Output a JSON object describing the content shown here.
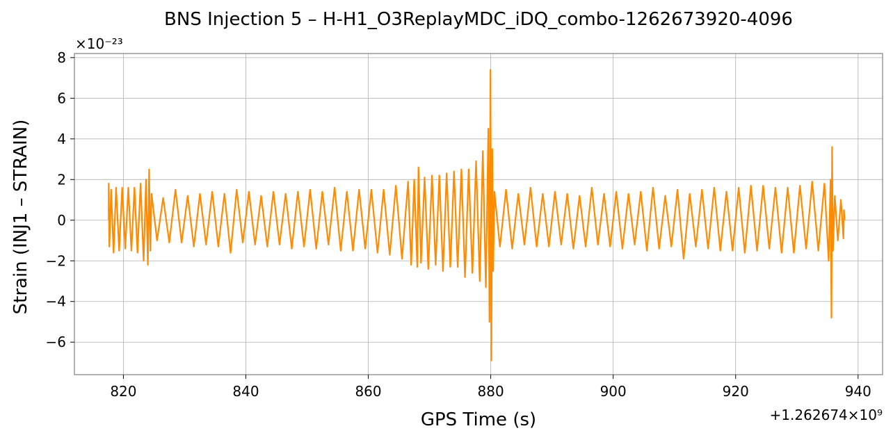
{
  "chart_data": {
    "type": "line",
    "title": "BNS Injection 5 – H-H1_O3ReplayMDC_iDQ_combo-1262673920-4096",
    "xlabel": "GPS Time (s)",
    "ylabel": "Strain (INJ1 – STRAIN)",
    "x_offset_label": "+1.262674×10⁹",
    "y_scale_label": "×10⁻²³",
    "xlim": [
      812,
      944
    ],
    "ylim": [
      -7.6,
      8.2
    ],
    "x_ticks": [
      {
        "value": 820,
        "label": "820"
      },
      {
        "value": 840,
        "label": "840"
      },
      {
        "value": 860,
        "label": "860"
      },
      {
        "value": 880,
        "label": "880"
      },
      {
        "value": 900,
        "label": "900"
      },
      {
        "value": 920,
        "label": "920"
      },
      {
        "value": 940,
        "label": "940"
      }
    ],
    "y_ticks": [
      {
        "value": -6,
        "label": "−6"
      },
      {
        "value": -4,
        "label": "−4"
      },
      {
        "value": -2,
        "label": "−2"
      },
      {
        "value": 0,
        "label": "0"
      },
      {
        "value": 2,
        "label": "2"
      },
      {
        "value": 4,
        "label": "4"
      },
      {
        "value": 6,
        "label": "6"
      },
      {
        "value": 8,
        "label": "8"
      }
    ],
    "grid": true,
    "line_color": "#ff8c00",
    "series": [
      {
        "values": [
          {
            "x": 817.6,
            "y": 0.0
          },
          {
            "x": 817.6,
            "y": 1.8
          },
          {
            "x": 817.7,
            "y": -1.3
          },
          {
            "x": 818.0,
            "y": 1.5
          },
          {
            "x": 818.4,
            "y": -1.6
          },
          {
            "x": 818.8,
            "y": 1.6
          },
          {
            "x": 819.3,
            "y": -1.5
          },
          {
            "x": 819.8,
            "y": 1.6
          },
          {
            "x": 820.3,
            "y": -1.4
          },
          {
            "x": 820.8,
            "y": 1.6
          },
          {
            "x": 821.3,
            "y": -1.5
          },
          {
            "x": 821.8,
            "y": 1.6
          },
          {
            "x": 822.3,
            "y": -1.6
          },
          {
            "x": 822.8,
            "y": 1.8
          },
          {
            "x": 823.3,
            "y": -2.0
          },
          {
            "x": 823.7,
            "y": 2.0
          },
          {
            "x": 824.0,
            "y": -2.2
          },
          {
            "x": 824.2,
            "y": 2.5
          },
          {
            "x": 824.4,
            "y": -1.5
          },
          {
            "x": 824.6,
            "y": 1.3
          },
          {
            "x": 825.5,
            "y": -1.0
          },
          {
            "x": 826.5,
            "y": 1.1
          },
          {
            "x": 827.5,
            "y": -1.1
          },
          {
            "x": 828.5,
            "y": 1.5
          },
          {
            "x": 829.5,
            "y": -1.1
          },
          {
            "x": 830.5,
            "y": 1.2
          },
          {
            "x": 831.5,
            "y": -1.3
          },
          {
            "x": 832.5,
            "y": 1.3
          },
          {
            "x": 833.5,
            "y": -1.2
          },
          {
            "x": 834.5,
            "y": 1.4
          },
          {
            "x": 835.5,
            "y": -1.3
          },
          {
            "x": 836.5,
            "y": 1.3
          },
          {
            "x": 837.5,
            "y": -1.6
          },
          {
            "x": 838.5,
            "y": 1.5
          },
          {
            "x": 839.5,
            "y": -1.1
          },
          {
            "x": 840.5,
            "y": 1.4
          },
          {
            "x": 841.5,
            "y": -1.2
          },
          {
            "x": 842.5,
            "y": 1.2
          },
          {
            "x": 843.5,
            "y": -1.3
          },
          {
            "x": 844.5,
            "y": 1.4
          },
          {
            "x": 845.5,
            "y": -1.2
          },
          {
            "x": 846.5,
            "y": 1.3
          },
          {
            "x": 847.5,
            "y": -1.4
          },
          {
            "x": 848.5,
            "y": 1.4
          },
          {
            "x": 849.5,
            "y": -1.3
          },
          {
            "x": 850.5,
            "y": 1.5
          },
          {
            "x": 851.5,
            "y": -1.4
          },
          {
            "x": 852.5,
            "y": 1.4
          },
          {
            "x": 853.5,
            "y": -1.2
          },
          {
            "x": 854.5,
            "y": 1.6
          },
          {
            "x": 855.5,
            "y": -1.5
          },
          {
            "x": 856.5,
            "y": 1.4
          },
          {
            "x": 857.5,
            "y": -1.5
          },
          {
            "x": 858.5,
            "y": 1.5
          },
          {
            "x": 859.5,
            "y": -1.4
          },
          {
            "x": 860.5,
            "y": 1.5
          },
          {
            "x": 861.5,
            "y": -1.6
          },
          {
            "x": 862.5,
            "y": 1.5
          },
          {
            "x": 863.5,
            "y": -1.7
          },
          {
            "x": 864.5,
            "y": 1.7
          },
          {
            "x": 865.5,
            "y": -1.9
          },
          {
            "x": 866.5,
            "y": 1.9
          },
          {
            "x": 867.0,
            "y": -2.2
          },
          {
            "x": 867.5,
            "y": 2.0
          },
          {
            "x": 868.0,
            "y": -2.3
          },
          {
            "x": 868.2,
            "y": 2.6
          },
          {
            "x": 868.6,
            "y": -2.1
          },
          {
            "x": 869.2,
            "y": 2.1
          },
          {
            "x": 869.8,
            "y": -2.4
          },
          {
            "x": 870.4,
            "y": 2.2
          },
          {
            "x": 871.0,
            "y": -2.2
          },
          {
            "x": 871.6,
            "y": 2.2
          },
          {
            "x": 872.2,
            "y": -2.5
          },
          {
            "x": 872.8,
            "y": 2.3
          },
          {
            "x": 873.4,
            "y": -2.3
          },
          {
            "x": 874.0,
            "y": 2.4
          },
          {
            "x": 874.6,
            "y": -2.3
          },
          {
            "x": 875.2,
            "y": 2.5
          },
          {
            "x": 875.8,
            "y": -2.8
          },
          {
            "x": 876.4,
            "y": 2.5
          },
          {
            "x": 877.0,
            "y": -2.6
          },
          {
            "x": 877.6,
            "y": 2.9
          },
          {
            "x": 878.2,
            "y": -3.0
          },
          {
            "x": 878.7,
            "y": 3.4
          },
          {
            "x": 879.2,
            "y": -3.3
          },
          {
            "x": 879.6,
            "y": 4.5
          },
          {
            "x": 879.8,
            "y": -5.0
          },
          {
            "x": 879.95,
            "y": 7.4
          },
          {
            "x": 880.1,
            "y": -6.9
          },
          {
            "x": 880.25,
            "y": 3.5
          },
          {
            "x": 880.4,
            "y": -2.5
          },
          {
            "x": 880.6,
            "y": 1.4
          },
          {
            "x": 881.5,
            "y": -1.3
          },
          {
            "x": 882.5,
            "y": 1.5
          },
          {
            "x": 883.5,
            "y": -1.4
          },
          {
            "x": 884.5,
            "y": 1.3
          },
          {
            "x": 885.5,
            "y": -1.2
          },
          {
            "x": 886.5,
            "y": 1.6
          },
          {
            "x": 887.5,
            "y": -1.3
          },
          {
            "x": 888.5,
            "y": 1.3
          },
          {
            "x": 889.5,
            "y": -1.3
          },
          {
            "x": 890.5,
            "y": 1.4
          },
          {
            "x": 891.5,
            "y": -1.2
          },
          {
            "x": 892.5,
            "y": 1.3
          },
          {
            "x": 893.5,
            "y": -1.4
          },
          {
            "x": 894.5,
            "y": 1.2
          },
          {
            "x": 895.5,
            "y": -1.3
          },
          {
            "x": 896.5,
            "y": 1.6
          },
          {
            "x": 897.5,
            "y": -1.2
          },
          {
            "x": 898.5,
            "y": 1.3
          },
          {
            "x": 899.5,
            "y": -1.3
          },
          {
            "x": 900.5,
            "y": 1.4
          },
          {
            "x": 901.5,
            "y": -1.4
          },
          {
            "x": 902.5,
            "y": 1.3
          },
          {
            "x": 903.5,
            "y": -1.2
          },
          {
            "x": 904.5,
            "y": 1.4
          },
          {
            "x": 905.5,
            "y": -1.5
          },
          {
            "x": 906.5,
            "y": 1.6
          },
          {
            "x": 907.5,
            "y": -1.4
          },
          {
            "x": 908.5,
            "y": 1.2
          },
          {
            "x": 909.5,
            "y": -1.3
          },
          {
            "x": 910.5,
            "y": 1.5
          },
          {
            "x": 911.5,
            "y": -1.9
          },
          {
            "x": 912.5,
            "y": 1.3
          },
          {
            "x": 913.5,
            "y": -1.3
          },
          {
            "x": 914.5,
            "y": 1.5
          },
          {
            "x": 915.5,
            "y": -1.4
          },
          {
            "x": 916.5,
            "y": 1.6
          },
          {
            "x": 917.5,
            "y": -1.5
          },
          {
            "x": 918.5,
            "y": 1.4
          },
          {
            "x": 919.5,
            "y": -1.5
          },
          {
            "x": 920.5,
            "y": 1.6
          },
          {
            "x": 921.5,
            "y": -1.6
          },
          {
            "x": 922.5,
            "y": 1.7
          },
          {
            "x": 923.5,
            "y": -1.5
          },
          {
            "x": 924.5,
            "y": 1.7
          },
          {
            "x": 925.5,
            "y": -1.4
          },
          {
            "x": 926.5,
            "y": 1.6
          },
          {
            "x": 927.5,
            "y": -1.6
          },
          {
            "x": 928.5,
            "y": 1.6
          },
          {
            "x": 929.5,
            "y": -1.6
          },
          {
            "x": 930.5,
            "y": 1.7
          },
          {
            "x": 931.5,
            "y": -1.4
          },
          {
            "x": 932.5,
            "y": 1.9
          },
          {
            "x": 933.5,
            "y": -1.5
          },
          {
            "x": 934.5,
            "y": 1.8
          },
          {
            "x": 935.2,
            "y": -2.0
          },
          {
            "x": 935.5,
            "y": 2.0
          },
          {
            "x": 935.65,
            "y": -4.8
          },
          {
            "x": 935.75,
            "y": 3.6
          },
          {
            "x": 935.9,
            "y": -1.5
          },
          {
            "x": 936.2,
            "y": 1.2
          },
          {
            "x": 936.7,
            "y": -1.0
          },
          {
            "x": 937.2,
            "y": 1.0
          },
          {
            "x": 937.6,
            "y": -0.9
          },
          {
            "x": 937.7,
            "y": 0.5
          },
          {
            "x": 937.8,
            "y": 0.0
          }
        ]
      }
    ]
  }
}
